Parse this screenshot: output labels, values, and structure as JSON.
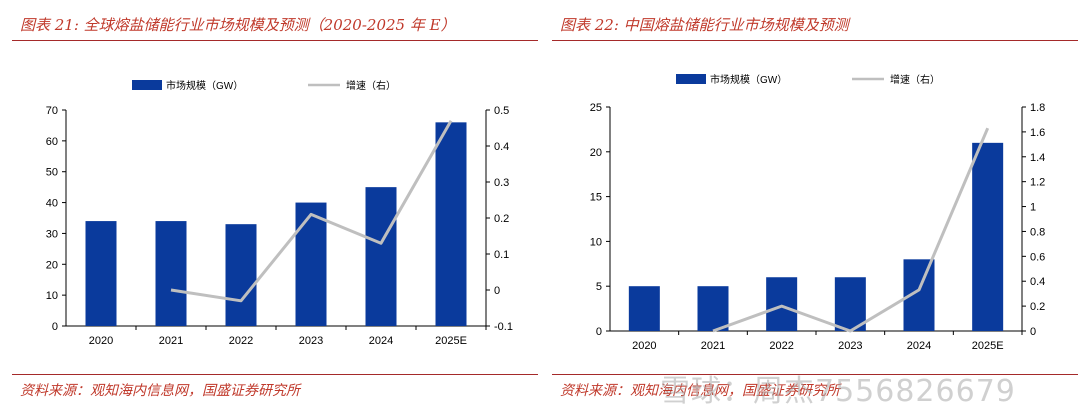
{
  "panels": [
    {
      "title": "图表 21:  全球熔盐储能行业市场规模及预测（2020-2025 年 E）",
      "source": "资料来源：观知海内信息网，国盛证券研究所"
    },
    {
      "title": "图表 22:  中国熔盐储能行业市场规模及预测",
      "source": "资料来源：观知海内信息网，国盛证券研究所"
    }
  ],
  "watermark": "雪球：周杰7556826679",
  "colors": {
    "bar": "#0a3a9c",
    "line": "#bfbfbf",
    "accent": "#c0392b"
  },
  "chart_data": [
    {
      "type": "bar",
      "categories": [
        "2020",
        "2021",
        "2022",
        "2023",
        "2024",
        "2025E"
      ],
      "series": [
        {
          "name": "市场规模（GW）",
          "type": "bar",
          "axis": "left",
          "values": [
            34,
            34,
            33,
            40,
            45,
            66
          ]
        },
        {
          "name": "增速（右）",
          "type": "line",
          "axis": "right",
          "values": [
            null,
            0.0,
            -0.03,
            0.21,
            0.13,
            0.47
          ]
        }
      ],
      "ylim_left": [
        0,
        70
      ],
      "yticks_left": [
        0,
        10,
        20,
        30,
        40,
        50,
        60,
        70
      ],
      "ylim_right": [
        -0.1,
        0.5
      ],
      "yticks_right": [
        "-0.1",
        "0",
        "0.1",
        "0.2",
        "0.3",
        "0.4",
        "0.5"
      ],
      "legend_position": "top",
      "grid": false
    },
    {
      "type": "bar",
      "categories": [
        "2020",
        "2021",
        "2022",
        "2023",
        "2024",
        "2025E"
      ],
      "series": [
        {
          "name": "市场规模（GW）",
          "type": "bar",
          "axis": "left",
          "values": [
            5,
            5,
            6,
            6,
            8,
            21
          ]
        },
        {
          "name": "增速（右）",
          "type": "line",
          "axis": "right",
          "values": [
            null,
            0.0,
            0.2,
            0.0,
            0.33,
            1.63
          ]
        }
      ],
      "ylim_left": [
        0,
        25
      ],
      "yticks_left": [
        0,
        5,
        10,
        15,
        20,
        25
      ],
      "ylim_right": [
        0,
        1.8
      ],
      "yticks_right": [
        "0",
        "0.2",
        "0.4",
        "0.6",
        "0.8",
        "1",
        "1.2",
        "1.4",
        "1.6",
        "1.8"
      ],
      "legend_position": "top",
      "grid": false
    }
  ]
}
